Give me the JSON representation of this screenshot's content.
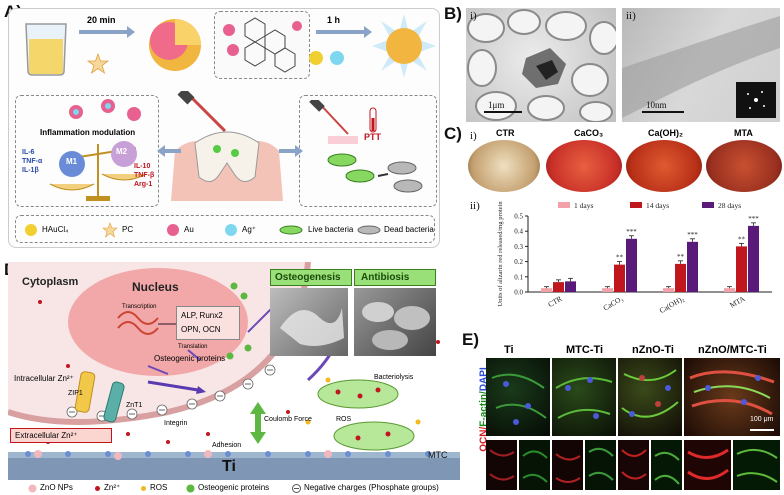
{
  "panelA": {
    "letter": "A)",
    "time1": "20 min",
    "time2": "1 h",
    "inflammation_title": "Inflammation modulation",
    "m1": "M1",
    "m2": "M2",
    "m1_markers": [
      "IL-6",
      "TNF-α",
      "IL-1β"
    ],
    "m2_markers": [
      "IL-10",
      "TNF-β",
      "Arg-1"
    ],
    "ptt": "PTT",
    "legend": [
      {
        "label": "HAuCl₄"
      },
      {
        "label": "PC"
      },
      {
        "label": "Au"
      },
      {
        "label": "Ag⁺"
      },
      {
        "label": "Live bacteria"
      },
      {
        "label": "Dead bacteria"
      }
    ]
  },
  "panelB": {
    "letter": "B)",
    "sub_i": "i)",
    "sub_ii": "ii)",
    "scale_i": "1μm",
    "scale_ii": "10nm"
  },
  "panelC": {
    "letter": "C)",
    "sub_i": "i)",
    "sub_ii": "ii)",
    "dish_labels": [
      "CTR",
      "CaCO₃",
      "Ca(OH)₂",
      "MTA"
    ]
  },
  "panelD": {
    "letter": "D)",
    "cytoplasm": "Cytoplasm",
    "nucleus": "Nucleus",
    "osteogenesis": "Osteogenesis",
    "antibiosis": "Antibiosis",
    "alp": "ALP, Runx2",
    "opn": "OPN, OCN",
    "transcription": "Transcription",
    "translation": "Translation",
    "osteogenic_proteins": "Osteogenic proteins",
    "intracellular": "Intracellular Zn²⁺",
    "zip1": "ZIP1",
    "znt1": "ZnT1",
    "integrin": "Integrin",
    "extracellular": "Extracellular Zn²⁺",
    "adhesion": "Adhesion",
    "coulomb": "Coulomb Force",
    "bacteriolysis": "Bacteriolysis",
    "ros": "ROS",
    "ti": "Ti",
    "mtc": "MTC",
    "legend": [
      {
        "label": "ZnO NPs"
      },
      {
        "label": "Zn²⁺"
      },
      {
        "label": "ROS"
      },
      {
        "label": "Osteogenic proteins"
      },
      {
        "label": "Negative charges (Phosphate groups)"
      }
    ]
  },
  "panelE": {
    "letter": "E)",
    "columns": [
      "Ti",
      "MTC-Ti",
      "nZnO-Ti",
      "nZnO/MTC-Ti"
    ],
    "side_label_ocn": "OCN/",
    "side_label_factin": "F-actin/",
    "side_label_dapi": "DAPI",
    "scale": "100 μm"
  },
  "chart_data": {
    "type": "bar",
    "categories": [
      "CTR",
      "CaCO₃",
      "Ca(OH)₂",
      "MTA"
    ],
    "series": [
      {
        "name": "1 days",
        "values": [
          0.025,
          0.025,
          0.025,
          0.025
        ],
        "errors": [
          0.01,
          0.01,
          0.01,
          0.01
        ]
      },
      {
        "name": "14 days",
        "values": [
          0.065,
          0.18,
          0.185,
          0.3
        ],
        "errors": [
          0.015,
          0.02,
          0.02,
          0.02
        ]
      },
      {
        "name": "28 days",
        "values": [
          0.07,
          0.35,
          0.33,
          0.435
        ],
        "errors": [
          0.02,
          0.02,
          0.02,
          0.02
        ]
      }
    ],
    "significance": [
      [
        "",
        "",
        ""
      ],
      [
        "",
        "**",
        "***"
      ],
      [
        "",
        "**",
        "***"
      ],
      [
        "",
        "**",
        "***"
      ]
    ],
    "ylabel": "Units of alizarin red released/mg protein",
    "ylim": [
      0,
      0.5
    ],
    "yticks": [
      0.0,
      0.1,
      0.2,
      0.3,
      0.4,
      0.5
    ],
    "colors": [
      "#f4a0a8",
      "#c0161e",
      "#5a1a7a"
    ],
    "legend_position": "top"
  }
}
